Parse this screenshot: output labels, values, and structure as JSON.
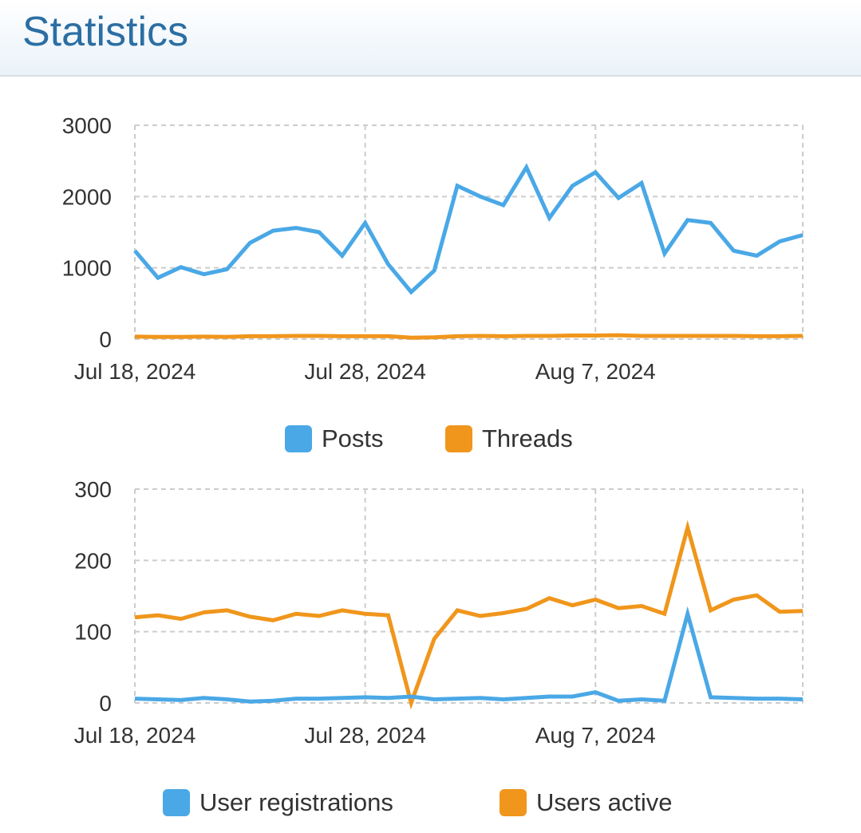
{
  "page": {
    "title": "Statistics"
  },
  "chart_data": [
    {
      "type": "line",
      "title": "",
      "x": [
        "Jul 18, 2024",
        "Jul 19, 2024",
        "Jul 20, 2024",
        "Jul 21, 2024",
        "Jul 22, 2024",
        "Jul 23, 2024",
        "Jul 24, 2024",
        "Jul 25, 2024",
        "Jul 26, 2024",
        "Jul 27, 2024",
        "Jul 28, 2024",
        "Jul 29, 2024",
        "Jul 30, 2024",
        "Jul 31, 2024",
        "Aug 1, 2024",
        "Aug 2, 2024",
        "Aug 3, 2024",
        "Aug 4, 2024",
        "Aug 5, 2024",
        "Aug 6, 2024",
        "Aug 7, 2024",
        "Aug 8, 2024",
        "Aug 9, 2024",
        "Aug 10, 2024",
        "Aug 11, 2024",
        "Aug 12, 2024",
        "Aug 13, 2024",
        "Aug 14, 2024",
        "Aug 15, 2024",
        "Aug 16, 2024"
      ],
      "x_ticks": [
        "Jul 18, 2024",
        "Jul 28, 2024",
        "Aug 7, 2024"
      ],
      "y_ticks": [
        0,
        1000,
        2000,
        3000
      ],
      "ylim": [
        0,
        3000
      ],
      "grid": true,
      "legend_position": "bottom",
      "series": [
        {
          "name": "Posts",
          "color": "#4aa8e6",
          "values": [
            1240,
            860,
            1010,
            910,
            980,
            1350,
            1520,
            1560,
            1500,
            1170,
            1630,
            1050,
            660,
            960,
            2150,
            2000,
            1880,
            2410,
            1700,
            2150,
            2340,
            1980,
            2190,
            1200,
            1670,
            1630,
            1240,
            1170,
            1370,
            1460
          ]
        },
        {
          "name": "Threads",
          "color": "#f0961c",
          "values": [
            35,
            30,
            30,
            35,
            30,
            40,
            40,
            45,
            45,
            40,
            40,
            40,
            20,
            25,
            40,
            45,
            40,
            45,
            45,
            50,
            50,
            55,
            45,
            45,
            45,
            45,
            45,
            40,
            40,
            45
          ]
        }
      ]
    },
    {
      "type": "line",
      "title": "",
      "x": [
        "Jul 18, 2024",
        "Jul 19, 2024",
        "Jul 20, 2024",
        "Jul 21, 2024",
        "Jul 22, 2024",
        "Jul 23, 2024",
        "Jul 24, 2024",
        "Jul 25, 2024",
        "Jul 26, 2024",
        "Jul 27, 2024",
        "Jul 28, 2024",
        "Jul 29, 2024",
        "Jul 30, 2024",
        "Jul 31, 2024",
        "Aug 1, 2024",
        "Aug 2, 2024",
        "Aug 3, 2024",
        "Aug 4, 2024",
        "Aug 5, 2024",
        "Aug 6, 2024",
        "Aug 7, 2024",
        "Aug 8, 2024",
        "Aug 9, 2024",
        "Aug 10, 2024",
        "Aug 11, 2024",
        "Aug 12, 2024",
        "Aug 13, 2024",
        "Aug 14, 2024",
        "Aug 15, 2024",
        "Aug 16, 2024"
      ],
      "x_ticks": [
        "Jul 18, 2024",
        "Jul 28, 2024",
        "Aug 7, 2024"
      ],
      "y_ticks": [
        0,
        100,
        200,
        300
      ],
      "ylim": [
        0,
        300
      ],
      "grid": true,
      "legend_position": "bottom",
      "series": [
        {
          "name": "User registrations",
          "color": "#4aa8e6",
          "values": [
            6,
            5,
            4,
            7,
            5,
            2,
            3,
            6,
            6,
            7,
            8,
            7,
            9,
            5,
            6,
            7,
            5,
            7,
            9,
            9,
            15,
            3,
            5,
            3,
            125,
            8,
            7,
            6,
            6,
            5
          ]
        },
        {
          "name": "Users active",
          "color": "#f0961c",
          "values": [
            120,
            123,
            118,
            127,
            130,
            121,
            116,
            125,
            122,
            130,
            125,
            123,
            0,
            90,
            130,
            122,
            126,
            132,
            147,
            137,
            145,
            133,
            136,
            125,
            246,
            130,
            145,
            151,
            128,
            129
          ]
        }
      ]
    }
  ]
}
